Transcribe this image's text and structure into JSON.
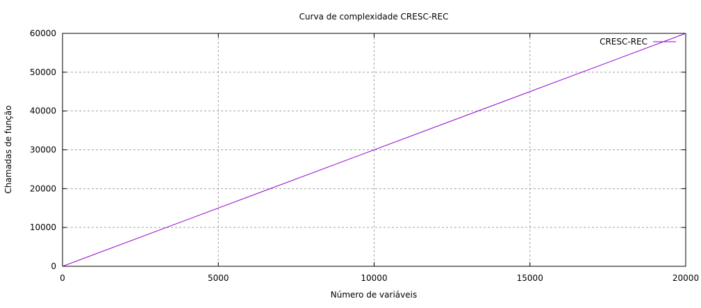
{
  "chart_data": {
    "type": "line",
    "title": "Curva de complexidade CRESC-REC",
    "xlabel": "Número de variáveis",
    "ylabel": "Chamadas de função",
    "xlim": [
      0,
      20000
    ],
    "ylim": [
      0,
      60000
    ],
    "xticks": [
      0,
      5000,
      10000,
      15000,
      20000
    ],
    "yticks": [
      0,
      10000,
      20000,
      30000,
      40000,
      50000,
      60000
    ],
    "grid": true,
    "legend_position": "top-right",
    "series": [
      {
        "name": "CRESC-REC",
        "color": "#9400d3",
        "x": [
          0,
          20000
        ],
        "y": [
          0,
          60000
        ]
      }
    ]
  }
}
